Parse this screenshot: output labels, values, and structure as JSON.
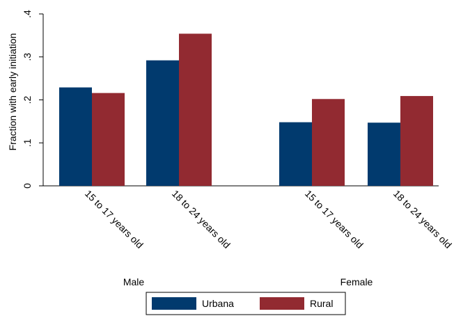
{
  "chart_data": {
    "type": "bar",
    "ylabel": "Fraction with early initiation",
    "ylim": [
      0,
      0.4
    ],
    "yticks": [
      {
        "value": 0,
        "label": "0"
      },
      {
        "value": 0.1,
        "label": ".1"
      },
      {
        "value": 0.2,
        "label": ".2"
      },
      {
        "value": 0.3,
        "label": ".3"
      },
      {
        "value": 0.4,
        "label": ".4"
      }
    ],
    "groups": [
      {
        "label": "Male",
        "categories": [
          "15 to 17 years old",
          "18 to 24 years old"
        ]
      },
      {
        "label": "Female",
        "categories": [
          "15 to 17 years old",
          "18 to 24 years old"
        ]
      }
    ],
    "series": [
      {
        "name": "Urbana",
        "color": "#013a6e",
        "values": [
          0.229,
          0.292,
          0.148,
          0.147
        ]
      },
      {
        "name": "Rural",
        "color": "#922a31",
        "values": [
          0.216,
          0.354,
          0.202,
          0.209
        ]
      }
    ],
    "legend_position": "bottom",
    "grid": false
  }
}
